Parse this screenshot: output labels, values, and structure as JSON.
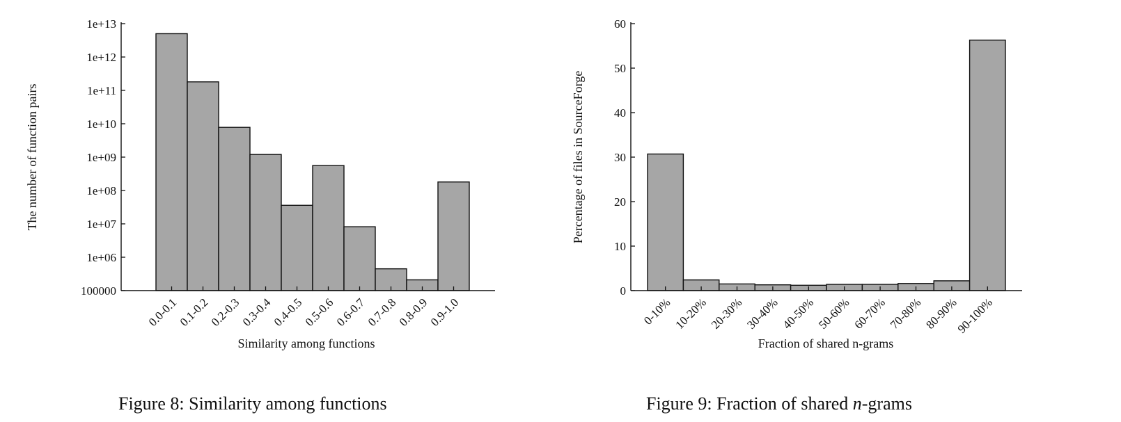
{
  "chart_data": [
    {
      "type": "bar",
      "yscale": "log",
      "xlabel": "Similarity among functions",
      "ylabel": "The number of function pairs",
      "categories": [
        "0.0-0.1",
        "0.1-0.2",
        "0.2-0.3",
        "0.3-0.4",
        "0.4-0.5",
        "0.5-0.6",
        "0.6-0.7",
        "0.7-0.8",
        "0.8-0.9",
        "0.9-1.0"
      ],
      "values": [
        5000000000000,
        180000000000,
        7800000000,
        1200000000,
        36000000,
        560000000,
        8200000,
        450000,
        210000,
        180000000
      ],
      "ylim": [
        100000,
        10000000000000
      ],
      "yticks": [
        "100000",
        "1e+06",
        "1e+07",
        "1e+08",
        "1e+09",
        "1e+10",
        "1e+11",
        "1e+12",
        "1e+13"
      ],
      "bar_color": "#a6a6a6",
      "grid": false
    },
    {
      "type": "bar",
      "xlabel": "Fraction of shared n-grams",
      "ylabel": "Percentage of files in SourceForge",
      "categories": [
        "0-10%",
        "10-20%",
        "20-30%",
        "30-40%",
        "40-50%",
        "50-60%",
        "60-70%",
        "70-80%",
        "80-90%",
        "90-100%"
      ],
      "values": [
        30.7,
        2.4,
        1.5,
        1.3,
        1.2,
        1.4,
        1.4,
        1.6,
        2.2,
        56.3
      ],
      "ylim": [
        0,
        60
      ],
      "yticks": [
        "0",
        "10",
        "20",
        "30",
        "40",
        "50",
        "60"
      ],
      "bar_color": "#a6a6a6",
      "grid": false
    }
  ],
  "captions": {
    "fig8": "Figure 8: Similarity among functions",
    "fig9_prefix": "Figure 9: Fraction of shared ",
    "fig9_var": "n",
    "fig9_suffix": "-grams"
  }
}
